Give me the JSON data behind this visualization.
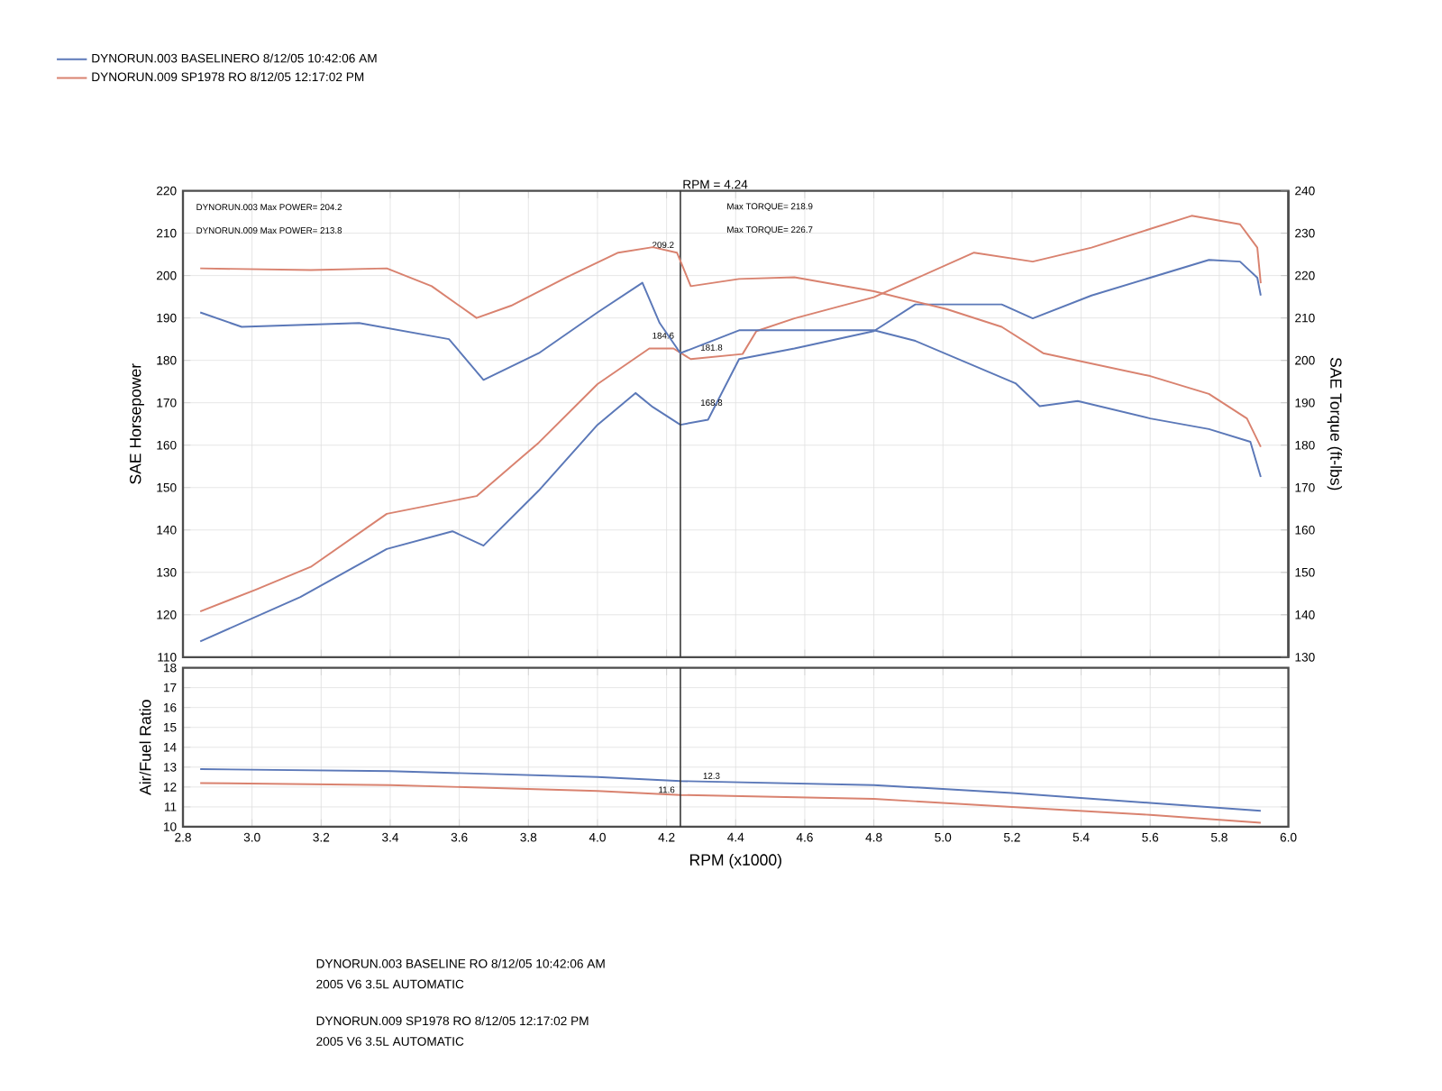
{
  "chart_data": [
    {
      "type": "line",
      "ylabel": "SAE Horsepower",
      "y2label": "SAE Torque (ft-lbs)",
      "xlim": [
        2.8,
        6.0
      ],
      "xticks": [
        2.8,
        3.0,
        3.2,
        3.4,
        3.6,
        3.8,
        4.0,
        4.2,
        4.4,
        4.6,
        4.8,
        5.0,
        5.2,
        5.4,
        5.6,
        5.8,
        6.0
      ],
      "ylim": [
        110,
        220
      ],
      "yticks": [
        110,
        120,
        130,
        140,
        150,
        160,
        170,
        180,
        190,
        200,
        210,
        220
      ],
      "y2lim": [
        130,
        240
      ],
      "y2ticks": [
        130,
        140,
        150,
        160,
        170,
        180,
        190,
        200,
        210,
        220,
        230,
        240
      ],
      "tick_labels": "y",
      "grid": true,
      "legend": "top left",
      "series": [
        {
          "name": "DYNORUN.003   BASELINERO   8/12/05 10:42:06 AM",
          "color": "#5b78b8",
          "x": [
            2.85,
            3.14,
            3.39,
            3.58,
            3.67,
            3.83,
            4.0,
            4.11,
            4.16,
            4.24,
            4.32,
            4.41,
            4.57,
            4.8,
            4.92,
            5.17,
            5.26,
            5.43,
            5.77,
            5.86,
            5.91,
            5.92
          ],
          "values": [
            113.7,
            124.2,
            135.5,
            139.7,
            136.3,
            149.3,
            164.8,
            172.3,
            169.0,
            164.8,
            166.0,
            180.3,
            182.8,
            186.9,
            193.2,
            193.2,
            189.9,
            195.3,
            203.7,
            203.3,
            199.5,
            195.3
          ]
        },
        {
          "name": "DYNORUN.009   SP1978      RO   8/12/05 12:17:02 PM",
          "color": "#d9826f",
          "x": [
            2.85,
            3.01,
            3.17,
            3.39,
            3.65,
            3.83,
            4.0,
            4.15,
            4.22,
            4.27,
            4.42,
            4.46,
            4.57,
            4.8,
            5.09,
            5.26,
            5.43,
            5.72,
            5.86,
            5.91,
            5.92
          ],
          "values": [
            120.8,
            125.9,
            131.3,
            143.8,
            148.0,
            160.6,
            174.4,
            182.8,
            182.8,
            180.3,
            181.5,
            186.9,
            189.9,
            194.9,
            205.4,
            203.3,
            206.6,
            214.1,
            212.1,
            206.6,
            198.2
          ]
        },
        {
          "axis": "y2",
          "color": "#5b78b8",
          "x": [
            2.85,
            2.97,
            3.31,
            3.57,
            3.67,
            3.83,
            4.0,
            4.13,
            4.18,
            4.24,
            4.41,
            4.8,
            4.92,
            5.21,
            5.28,
            5.39,
            5.6,
            5.77,
            5.89,
            5.92
          ],
          "values": [
            211.3,
            207.9,
            208.8,
            205.0,
            195.4,
            201.7,
            211.3,
            218.3,
            208.8,
            201.7,
            207.1,
            207.1,
            204.6,
            194.6,
            189.2,
            190.4,
            186.3,
            183.8,
            180.8,
            172.5
          ]
        },
        {
          "axis": "y2",
          "color": "#d9826f",
          "x": [
            2.85,
            3.17,
            3.39,
            3.52,
            3.65,
            3.75,
            3.91,
            4.06,
            4.16,
            4.23,
            4.27,
            4.41,
            4.57,
            4.8,
            5.01,
            5.17,
            5.29,
            5.6,
            5.77,
            5.88,
            5.92
          ],
          "values": [
            221.7,
            221.3,
            221.7,
            217.5,
            210.0,
            212.9,
            219.6,
            225.4,
            226.7,
            225.4,
            217.5,
            219.2,
            219.6,
            216.3,
            212.1,
            207.9,
            201.7,
            196.3,
            192.1,
            186.3,
            179.6
          ]
        }
      ],
      "ref_lines": [
        {
          "axis": "x",
          "value": 4.24,
          "label": "RPM = 4.24"
        }
      ],
      "annotations": [
        "DYNORUN.003  Max POWER= 204.2",
        "DYNORUN.009  Max POWER= 213.8",
        "Max TORQUE= 218.9",
        "Max TORQUE= 226.7",
        {
          "text": "209.2",
          "x": 4.19,
          "y": 206.0
        },
        {
          "text": "184.6",
          "x": 4.19,
          "y": 184.6
        },
        {
          "text": "181.8",
          "x": 4.33,
          "y": 181.8
        },
        {
          "text": "168.8",
          "x": 4.33,
          "y": 168.8
        }
      ]
    },
    {
      "type": "line",
      "xlabel": "RPM (x1000)",
      "ylabel": "Air/Fuel Ratio",
      "xlim": [
        2.8,
        6.0
      ],
      "xticks": [
        2.8,
        {
          "value": 3.0,
          "label": "3.0"
        },
        3.2,
        3.4,
        3.6,
        3.8,
        {
          "value": 4.0,
          "label": "4.0"
        },
        4.2,
        4.4,
        4.6,
        4.8,
        {
          "value": 5.0,
          "label": "5.0"
        },
        5.2,
        5.4,
        5.6,
        5.8,
        {
          "value": 6.0,
          "label": "6.0"
        }
      ],
      "ylim": [
        10,
        18
      ],
      "yticks": [
        10,
        11,
        12,
        13,
        14,
        15,
        16,
        17,
        18
      ],
      "grid": true,
      "series": [
        {
          "color": "#5b78b8",
          "x": [
            2.85,
            3.4,
            4.0,
            4.24,
            4.8,
            5.2,
            5.6,
            5.92
          ],
          "values": [
            12.9,
            12.8,
            12.5,
            12.3,
            12.1,
            11.7,
            11.2,
            10.8
          ]
        },
        {
          "color": "#d9826f",
          "x": [
            2.85,
            3.4,
            4.0,
            4.24,
            4.8,
            5.2,
            5.6,
            5.92
          ],
          "values": [
            12.2,
            12.1,
            11.8,
            11.6,
            11.4,
            11.0,
            10.6,
            10.2
          ]
        }
      ],
      "ref_lines": [
        {
          "axis": "x",
          "value": 4.24
        }
      ],
      "annotations": [
        {
          "text": "11.6",
          "x": 4.2,
          "y": 11.6
        },
        {
          "text": "12.3",
          "x": 4.33,
          "y": 12.3
        },
        "DYNORUN.003   BASELINE     RO   8/12/05 10:42:06 AM",
        "2005 V6 3.5L AUTOMATIC",
        "DYNORUN.009   SP1978       RO   8/12/05 12:17:02 PM",
        "2005 V6 3.5L AUTOMATIC"
      ]
    }
  ]
}
